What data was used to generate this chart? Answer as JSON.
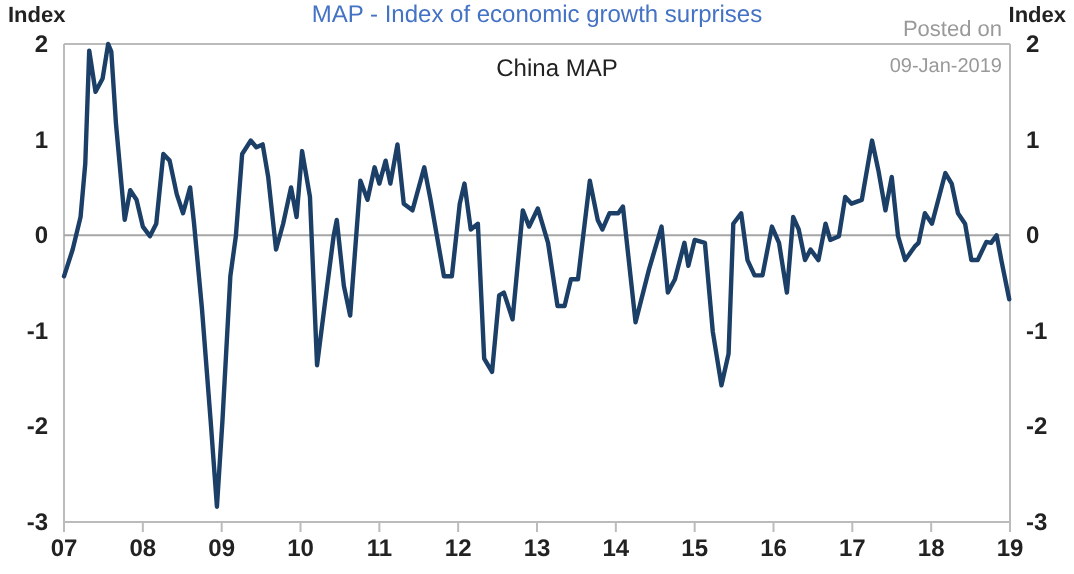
{
  "chart_data": {
    "type": "line",
    "title": "MAP - Index of economic growth surprises",
    "ylabel": "Index",
    "y2label": "Index",
    "annotations": [
      "China MAP",
      "Posted on",
      "09-Jan-2019"
    ],
    "xlim": [
      2007,
      2019
    ],
    "xticks": [
      {
        "value": 2007,
        "label": "07"
      },
      {
        "value": 2008,
        "label": "08"
      },
      {
        "value": 2009,
        "label": "09"
      },
      {
        "value": 2010,
        "label": "10"
      },
      {
        "value": 2011,
        "label": "11"
      },
      {
        "value": 2012,
        "label": "12"
      },
      {
        "value": 2013,
        "label": "13"
      },
      {
        "value": 2014,
        "label": "14"
      },
      {
        "value": 2015,
        "label": "15"
      },
      {
        "value": 2016,
        "label": "16"
      },
      {
        "value": 2017,
        "label": "17"
      },
      {
        "value": 2018,
        "label": "18"
      },
      {
        "value": 2019,
        "label": "19"
      }
    ],
    "ylim": [
      -3,
      2
    ],
    "yticks": [
      -3,
      -2,
      -1,
      0,
      1,
      2
    ],
    "y2lim": [
      -3,
      2
    ],
    "y2ticks": [
      -3,
      -2,
      -1,
      0,
      1,
      2
    ],
    "ref_lines": [
      {
        "axis": "y",
        "value": 0,
        "color": "#a6a6a6"
      }
    ],
    "grid": false,
    "marker": "none",
    "line_style": "solid",
    "series": [
      {
        "color": "#1b3f66",
        "x": [
          2007.0,
          2007.11,
          2007.21,
          2007.27,
          2007.32,
          2007.4,
          2007.49,
          2007.56,
          2007.6,
          2007.66,
          2007.77,
          2007.84,
          2007.92,
          2008.0,
          2008.09,
          2008.17,
          2008.26,
          2008.34,
          2008.43,
          2008.51,
          2008.6,
          2008.65,
          2008.75,
          2008.86,
          2008.94,
          2009.01,
          2009.11,
          2009.18,
          2009.26,
          2009.37,
          2009.44,
          2009.52,
          2009.59,
          2009.69,
          2009.78,
          2009.88,
          2009.95,
          2010.02,
          2010.12,
          2010.21,
          2010.29,
          2010.42,
          2010.46,
          2010.55,
          2010.63,
          2010.76,
          2010.85,
          2010.94,
          2011.0,
          2011.08,
          2011.14,
          2011.23,
          2011.31,
          2011.42,
          2011.57,
          2011.65,
          2011.82,
          2011.92,
          2012.02,
          2012.08,
          2012.16,
          2012.25,
          2012.33,
          2012.43,
          2012.52,
          2012.58,
          2012.69,
          2012.82,
          2012.9,
          2013.01,
          2013.14,
          2013.26,
          2013.35,
          2013.43,
          2013.52,
          2013.67,
          2013.77,
          2013.83,
          2013.92,
          2014.03,
          2014.09,
          2014.25,
          2014.42,
          2014.58,
          2014.66,
          2014.75,
          2014.87,
          2014.92,
          2015.0,
          2015.13,
          2015.23,
          2015.34,
          2015.43,
          2015.49,
          2015.59,
          2015.67,
          2015.76,
          2015.86,
          2015.98,
          2016.07,
          2016.17,
          2016.25,
          2016.32,
          2016.4,
          2016.47,
          2016.57,
          2016.66,
          2016.72,
          2016.83,
          2016.91,
          2016.99,
          2017.12,
          2017.25,
          2017.33,
          2017.42,
          2017.5,
          2017.58,
          2017.67,
          2017.79,
          2017.84,
          2017.92,
          2018.01,
          2018.18,
          2018.26,
          2018.34,
          2018.43,
          2018.51,
          2018.59,
          2018.7,
          2018.76,
          2018.83,
          2018.89,
          2018.99
        ],
        "values": [
          -0.43,
          -0.15,
          0.19,
          0.75,
          1.93,
          1.5,
          1.64,
          2.0,
          1.92,
          1.16,
          0.16,
          0.47,
          0.37,
          0.09,
          -0.01,
          0.12,
          0.85,
          0.78,
          0.43,
          0.23,
          0.5,
          0.12,
          -0.77,
          -1.94,
          -2.84,
          -1.94,
          -0.43,
          -0.01,
          0.85,
          0.99,
          0.92,
          0.95,
          0.61,
          -0.15,
          0.12,
          0.5,
          0.19,
          0.88,
          0.4,
          -1.36,
          -0.84,
          -0.01,
          0.16,
          -0.53,
          -0.84,
          0.57,
          0.37,
          0.71,
          0.54,
          0.78,
          0.54,
          0.95,
          0.33,
          0.26,
          0.71,
          0.37,
          -0.43,
          -0.43,
          0.33,
          0.54,
          0.06,
          0.12,
          -1.29,
          -1.43,
          -0.63,
          -0.6,
          -0.88,
          0.26,
          0.09,
          0.28,
          -0.08,
          -0.74,
          -0.74,
          -0.46,
          -0.46,
          0.57,
          0.16,
          0.06,
          0.23,
          0.23,
          0.3,
          -0.91,
          -0.36,
          0.09,
          -0.6,
          -0.46,
          -0.08,
          -0.32,
          -0.05,
          -0.08,
          -1.01,
          -1.57,
          -1.24,
          0.12,
          0.23,
          -0.26,
          -0.42,
          -0.42,
          0.09,
          -0.08,
          -0.6,
          0.19,
          0.06,
          -0.26,
          -0.15,
          -0.26,
          0.12,
          -0.05,
          -0.01,
          0.4,
          0.33,
          0.37,
          0.99,
          0.68,
          0.26,
          0.61,
          -0.01,
          -0.26,
          -0.12,
          -0.08,
          0.23,
          0.12,
          0.65,
          0.54,
          0.23,
          0.12,
          -0.26,
          -0.26,
          -0.07,
          -0.08,
          0.0,
          -0.26,
          -0.67
        ]
      }
    ]
  }
}
